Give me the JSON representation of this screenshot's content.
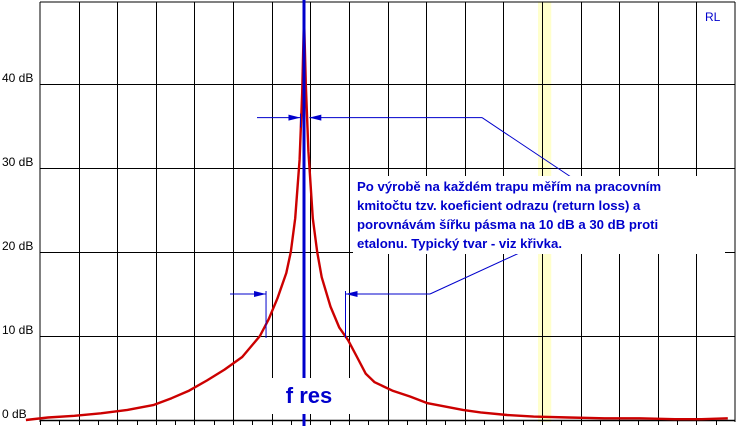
{
  "chart_data": {
    "type": "line",
    "title": "",
    "corner_label": "RL",
    "ylabel": "",
    "xlabel": "",
    "ylim": [
      0,
      50
    ],
    "xlim": [
      -31.5,
      48
    ],
    "yticks": [
      0,
      10,
      20,
      30,
      40
    ],
    "ytick_labels": [
      "0 dB",
      "10 dB",
      "20 dB",
      "30 dB",
      "40 dB"
    ],
    "grid": true,
    "colors": {
      "curve": "#cc0000",
      "marker": "#0000cc",
      "annotation": "#0000cc",
      "grid": "#000000",
      "highlight_band": "#ffffcc"
    },
    "series": [
      {
        "values_x": [
          -31.5,
          -29,
          -26,
          -23,
          -20,
          -17,
          -15,
          -13,
          -11,
          -9,
          -7,
          -5,
          -4,
          -3,
          -2,
          -1.5,
          -1,
          -0.5,
          -0.2,
          0,
          0.2,
          0.5,
          1,
          1.5,
          2,
          3,
          4,
          5,
          6,
          7,
          8,
          10,
          12,
          14,
          16,
          18,
          20,
          23,
          26,
          30,
          34,
          38,
          42,
          45,
          48
        ],
        "values_y": [
          0,
          0.3,
          0.5,
          0.8,
          1.2,
          1.8,
          2.6,
          3.5,
          4.7,
          6.0,
          7.5,
          10,
          12,
          14.5,
          17.5,
          20,
          24,
          31,
          39,
          48,
          40,
          32,
          24,
          20,
          17,
          13.5,
          11,
          9.5,
          7.5,
          5.5,
          4.5,
          3.5,
          2.8,
          2.0,
          1.6,
          1.2,
          0.9,
          0.6,
          0.4,
          0.3,
          0.2,
          0.2,
          0.1,
          0.1,
          0.2
        ]
      }
    ],
    "marker": {
      "x": 0,
      "label": "f res"
    },
    "highlight_band": {
      "x_from": 26.5,
      "x_to": 28
    },
    "annotations": {
      "bw30": {
        "y": 36,
        "x_left": -0.4,
        "x_right": 0.6
      },
      "bw10": {
        "y": 15,
        "x_left": -4.3,
        "x_right": 4.7
      }
    }
  },
  "note": {
    "lines": [
      "Po výrobě na každém trapu měřím  na pracovním",
      "kmitočtu tzv. koeficient odrazu (return loss) a",
      "porovnávám šířku pásma na 10 dB a 30 dB proti",
      "etalonu. Typický tvar - viz křivka."
    ]
  }
}
